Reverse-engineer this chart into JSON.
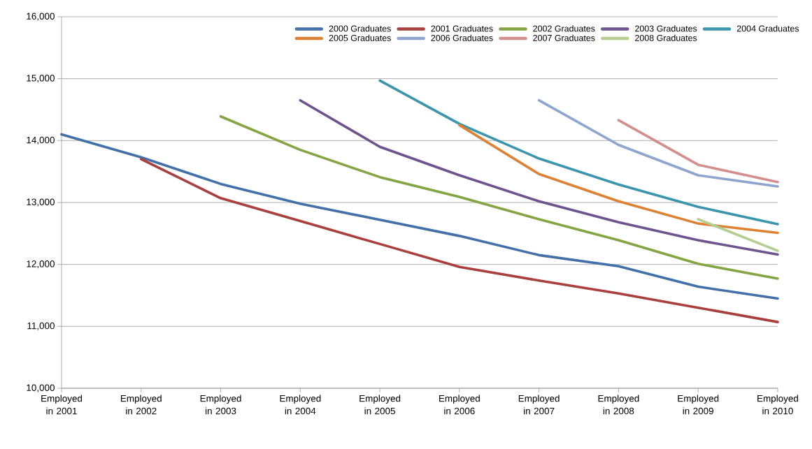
{
  "chart_data": {
    "type": "line",
    "categories": [
      "Employed in 2001",
      "Employed in 2002",
      "Employed in 2003",
      "Employed in 2004",
      "Employed in 2005",
      "Employed in 2006",
      "Employed in 2007",
      "Employed in 2008",
      "Employed in 2009",
      "Employed in 2010"
    ],
    "series": [
      {
        "name": "2000 Graduates",
        "color": "#4470a9",
        "values": [
          14100,
          13730,
          13300,
          12980,
          12720,
          12460,
          12150,
          11970,
          11640,
          11450
        ]
      },
      {
        "name": "2001 Graduates",
        "color": "#a9403e",
        "values": [
          null,
          13700,
          13070,
          12700,
          12330,
          11960,
          11740,
          11530,
          11300,
          11070
        ]
      },
      {
        "name": "2002 Graduates",
        "color": "#85a545",
        "values": [
          null,
          null,
          14390,
          13850,
          13410,
          13090,
          12730,
          12390,
          12010,
          11770
        ]
      },
      {
        "name": "2003 Graduates",
        "color": "#6d548f",
        "values": [
          null,
          null,
          null,
          14650,
          13900,
          13440,
          13020,
          12680,
          12390,
          12160
        ]
      },
      {
        "name": "2004 Graduates",
        "color": "#3b96ad",
        "values": [
          null,
          null,
          null,
          null,
          14970,
          14270,
          13710,
          13290,
          12930,
          12650
        ]
      },
      {
        "name": "2005 Graduates",
        "color": "#dd8134",
        "values": [
          null,
          null,
          null,
          null,
          null,
          14250,
          13460,
          13020,
          12660,
          12510
        ]
      },
      {
        "name": "2006 Graduates",
        "color": "#8ea6ce",
        "values": [
          null,
          null,
          null,
          null,
          null,
          null,
          14650,
          13930,
          13440,
          13260
        ]
      },
      {
        "name": "2007 Graduates",
        "color": "#d28f8d",
        "values": [
          null,
          null,
          null,
          null,
          null,
          null,
          null,
          14330,
          13610,
          13330
        ]
      },
      {
        "name": "2008 Graduates",
        "color": "#b4ce91",
        "values": [
          null,
          null,
          null,
          null,
          null,
          null,
          null,
          null,
          12730,
          12220
        ]
      }
    ],
    "ylim": [
      10000,
      16000
    ],
    "yticks": [
      {
        "value": 10000,
        "label": "10,000"
      },
      {
        "value": 11000,
        "label": "11,000"
      },
      {
        "value": 12000,
        "label": "12,000"
      },
      {
        "value": 13000,
        "label": "13,000"
      },
      {
        "value": 14000,
        "label": "14,000"
      },
      {
        "value": 15000,
        "label": "15,000"
      },
      {
        "value": 16000,
        "label": "16,000"
      }
    ],
    "grid": "y",
    "legend": "top right",
    "marker": "none",
    "line_style": "solid"
  }
}
